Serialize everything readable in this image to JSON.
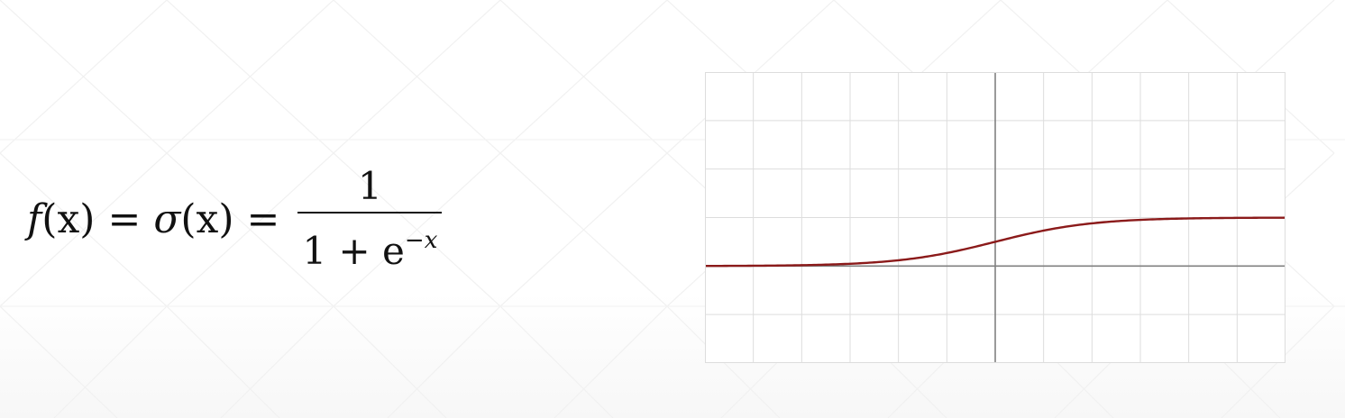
{
  "formula": {
    "lhs_func": "f",
    "lhs_var": "(x)",
    "equals": "=",
    "mid_func": "σ",
    "mid_var": "(x)",
    "numerator": "1",
    "denominator_base": "1 + e",
    "denominator_exp": "−x"
  },
  "chart_data": {
    "type": "line",
    "function": "1/(1+e^(-x))",
    "xlim": [
      -6,
      6
    ],
    "ylim": [
      -2,
      4
    ],
    "grid": true,
    "grid_step": 1,
    "axes": true,
    "colors": {
      "curve": "#8b1a1a",
      "grid": "#dddddd",
      "axis": "#808080"
    },
    "series": [
      {
        "x": [
          -6,
          -5,
          -4,
          -3,
          -2,
          -1,
          0,
          1,
          2,
          3,
          4,
          5,
          6
        ],
        "y": [
          0.0025,
          0.0067,
          0.018,
          0.047,
          0.119,
          0.269,
          0.5,
          0.731,
          0.881,
          0.953,
          0.982,
          0.993,
          0.9975
        ]
      }
    ]
  }
}
